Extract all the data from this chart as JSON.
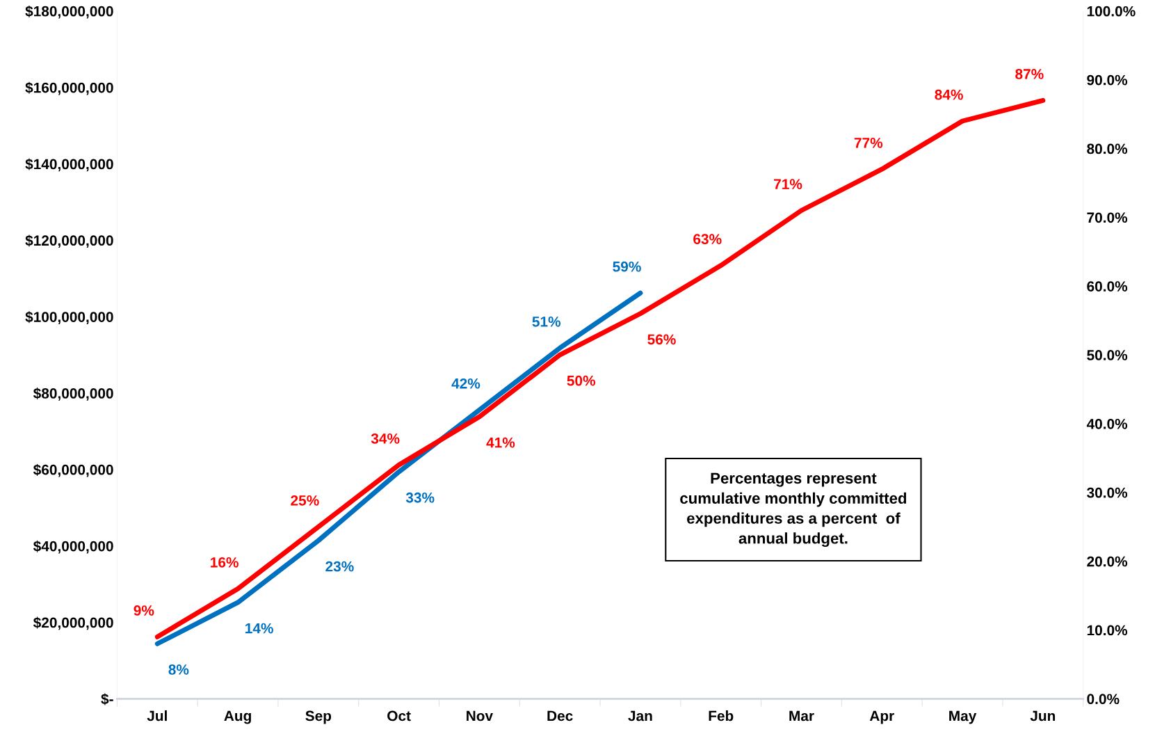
{
  "chart_data": {
    "type": "line",
    "categories": [
      "Jul",
      "Aug",
      "Sep",
      "Oct",
      "Nov",
      "Dec",
      "Jan",
      "Feb",
      "Mar",
      "Apr",
      "May",
      "Jun"
    ],
    "series": [
      {
        "color": "#0070c0",
        "axis": "y2",
        "values": [
          8,
          14,
          23,
          33,
          42,
          51,
          59,
          null,
          null,
          null,
          null,
          null
        ],
        "value_labels": [
          "8%",
          "14%",
          "23%",
          "33%",
          "42%",
          "51%",
          "59%",
          null,
          null,
          null,
          null,
          null
        ]
      },
      {
        "color": "#ff0000",
        "axis": "y2",
        "values": [
          9,
          16,
          25,
          34,
          41,
          50,
          56,
          63,
          71,
          77,
          84,
          87
        ],
        "value_labels": [
          "9%",
          "16%",
          "25%",
          "34%",
          "41%",
          "50%",
          "56%",
          "63%",
          "71%",
          "77%",
          "84%",
          "87%"
        ]
      }
    ],
    "ylim": [
      0,
      180000000
    ],
    "yticks": [
      {
        "value": 0,
        "label": "$-"
      },
      {
        "value": 20000000,
        "label": "$20,000,000"
      },
      {
        "value": 40000000,
        "label": "$40,000,000"
      },
      {
        "value": 60000000,
        "label": "$60,000,000"
      },
      {
        "value": 80000000,
        "label": "$80,000,000"
      },
      {
        "value": 100000000,
        "label": "$100,000,000"
      },
      {
        "value": 120000000,
        "label": "$120,000,000"
      },
      {
        "value": 140000000,
        "label": "$140,000,000"
      },
      {
        "value": 160000000,
        "label": "$160,000,000"
      },
      {
        "value": 180000000,
        "label": "$180,000,000"
      }
    ],
    "y2lim": [
      0,
      100
    ],
    "y2ticks": [
      {
        "value": 0,
        "label": "0.0%"
      },
      {
        "value": 10,
        "label": "10.0%"
      },
      {
        "value": 20,
        "label": "20.0%"
      },
      {
        "value": 30,
        "label": "30.0%"
      },
      {
        "value": 40,
        "label": "40.0%"
      },
      {
        "value": 50,
        "label": "50.0%"
      },
      {
        "value": 60,
        "label": "60.0%"
      },
      {
        "value": 70,
        "label": "70.0%"
      },
      {
        "value": 80,
        "label": "80.0%"
      },
      {
        "value": 90,
        "label": "90.0%"
      },
      {
        "value": 100,
        "label": "100.0%"
      }
    ],
    "annotations": [
      "Percentages represent\ncumulative monthly committed\nexpenditures as a percent  of\nannual budget."
    ],
    "grid": false,
    "legend": false,
    "marker": "none",
    "line_style": "solid"
  }
}
